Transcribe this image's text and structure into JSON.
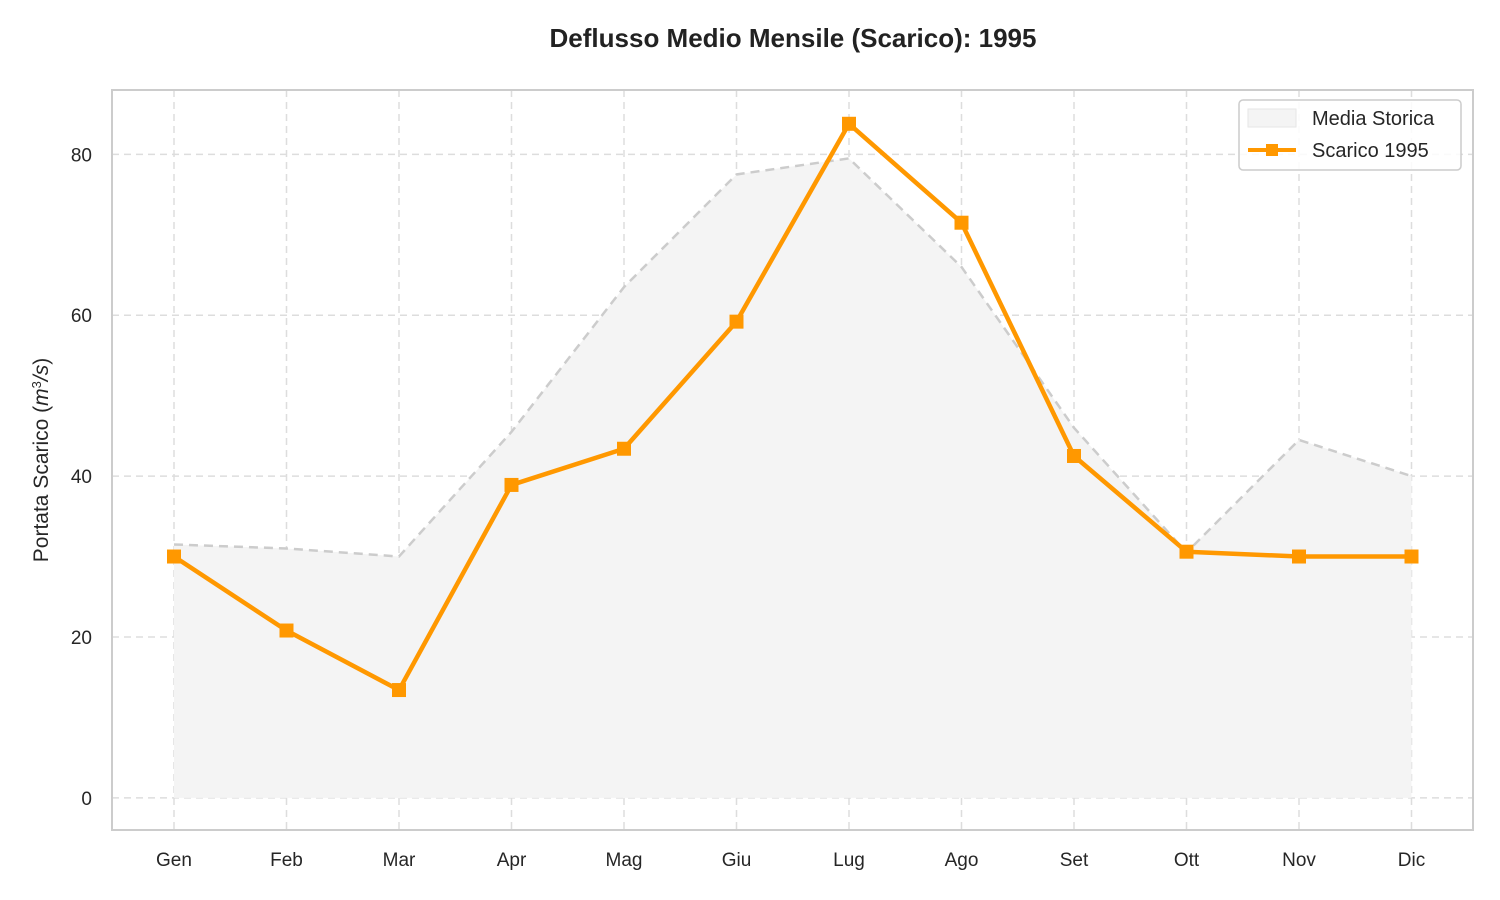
{
  "chart_data": {
    "type": "line",
    "title": "Deflusso Medio Mensile (Scarico): 1995",
    "xlabel": "",
    "ylabel_text": "Portata Scarico (",
    "ylabel_unit_base": "m",
    "ylabel_unit_exp": "3",
    "ylabel_unit_tail": "/s",
    "ylabel_close": ")",
    "categories": [
      "Gen",
      "Feb",
      "Mar",
      "Apr",
      "Mag",
      "Giu",
      "Lug",
      "Ago",
      "Set",
      "Ott",
      "Nov",
      "Dic"
    ],
    "ylim": [
      -4,
      88
    ],
    "yticks": [
      0,
      20,
      40,
      60,
      80
    ],
    "grid": true,
    "legend_position": "top-right",
    "series": [
      {
        "name": "Media Storica",
        "kind": "area",
        "color": "#cccccc",
        "fill": "#f4f4f4",
        "values": [
          31.5,
          31.0,
          30.0,
          45.5,
          63.5,
          77.5,
          79.5,
          66.0,
          46.0,
          30.5,
          44.5,
          40.0
        ]
      },
      {
        "name": "Scarico 1995",
        "kind": "line",
        "marker": "square",
        "color": "#ff9800",
        "values": [
          30.0,
          20.8,
          13.4,
          38.9,
          43.4,
          59.2,
          83.8,
          71.5,
          42.5,
          30.6,
          30.0,
          30.0
        ]
      }
    ]
  }
}
